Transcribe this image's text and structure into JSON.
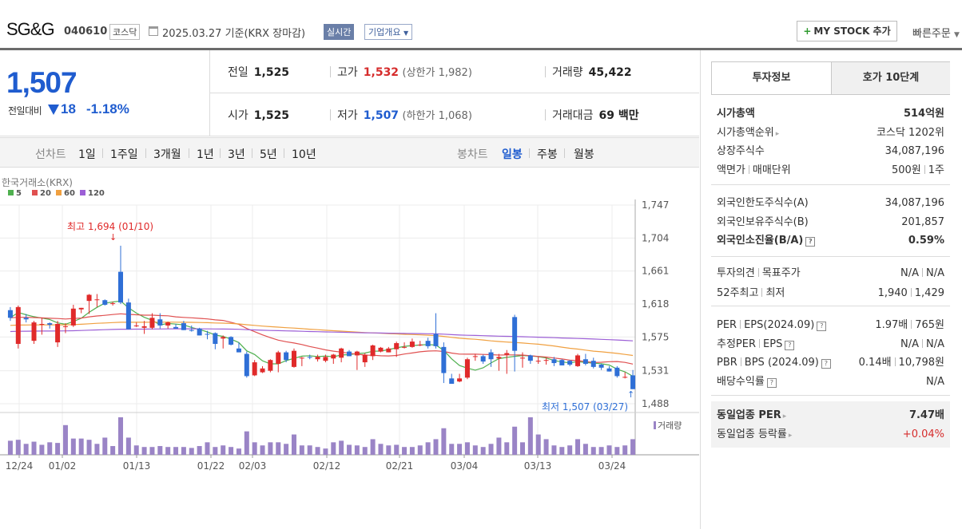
{
  "header": {
    "name": "SG&G",
    "code": "040610",
    "market": "코스닥",
    "date": "2025.03.27 기준(KRX 장마감)",
    "realtime": "실시간",
    "company_info": "기업개요",
    "mystock": "MY STOCK 추가",
    "quick_order": "빠른주문"
  },
  "quote": {
    "price": "1,507",
    "vs_label": "전일대비",
    "change": "18",
    "change_pct": "-1.18%",
    "prev_label": "전일",
    "prev": "1,525",
    "open_label": "시가",
    "open": "1,525",
    "high_label": "고가",
    "high": "1,532",
    "upper_limit": "(상한가 1,982)",
    "low_label": "저가",
    "low": "1,507",
    "lower_limit": "(하한가 1,068)",
    "volume_label": "거래량",
    "volume": "45,422",
    "amount_label": "거래대금",
    "amount": "69 백만"
  },
  "toolbar": {
    "line_chart": "선차트",
    "periods": [
      "1일",
      "1주일",
      "3개월",
      "1년",
      "3년",
      "5년",
      "10년"
    ],
    "candle_chart": "봉차트",
    "candle_periods": [
      "일봉",
      "주봉",
      "월봉"
    ],
    "selected_candle": "일봉"
  },
  "chart_data": {
    "type": "candlestick",
    "source": "한국거래소(KRX)",
    "legend": [
      {
        "name": "5",
        "color": "#4fb04f"
      },
      {
        "name": "20",
        "color": "#e05050"
      },
      {
        "name": "60",
        "color": "#f0a040"
      },
      {
        "name": "120",
        "color": "#9c5fd6"
      }
    ],
    "y_ticks": [
      "1,747",
      "1,704",
      "1,661",
      "1,618",
      "1,575",
      "1,531",
      "1,488"
    ],
    "ylim": [
      1488,
      1747
    ],
    "x_ticks": [
      "12/24",
      "01/02",
      "01/13",
      "01/22",
      "02/03",
      "02/12",
      "02/21",
      "03/04",
      "03/13",
      "03/24"
    ],
    "high_note": "최고 1,694 (01/10)",
    "low_note": "최저 1,507 (03/27)",
    "volume_label": "거래량",
    "candles": [
      {
        "o": 1610,
        "c": 1600,
        "h": 1614,
        "l": 1596
      },
      {
        "o": 1566,
        "c": 1614,
        "h": 1616,
        "l": 1560
      },
      {
        "o": 1600,
        "c": 1598,
        "h": 1605,
        "l": 1594
      },
      {
        "o": 1570,
        "c": 1594,
        "h": 1596,
        "l": 1566
      },
      {
        "o": 1592,
        "c": 1592,
        "h": 1600,
        "l": 1578
      },
      {
        "o": 1593,
        "c": 1591,
        "h": 1594,
        "l": 1586
      },
      {
        "o": 1568,
        "c": 1592,
        "h": 1596,
        "l": 1562
      },
      {
        "o": 1589,
        "c": 1589,
        "h": 1593,
        "l": 1580
      },
      {
        "o": 1590,
        "c": 1612,
        "h": 1617,
        "l": 1588
      },
      {
        "o": 1611,
        "c": 1613,
        "h": 1613,
        "l": 1606
      },
      {
        "o": 1622,
        "c": 1630,
        "h": 1631,
        "l": 1605
      },
      {
        "o": 1624,
        "c": 1624,
        "h": 1631,
        "l": 1614
      },
      {
        "o": 1623,
        "c": 1617,
        "h": 1624,
        "l": 1616
      },
      {
        "o": 1619,
        "c": 1619,
        "h": 1621,
        "l": 1616
      },
      {
        "o": 1660,
        "c": 1620,
        "h": 1694,
        "l": 1618
      },
      {
        "o": 1620,
        "c": 1585,
        "h": 1625,
        "l": 1585
      },
      {
        "o": 1590,
        "c": 1590,
        "h": 1594,
        "l": 1588
      },
      {
        "o": 1587,
        "c": 1589,
        "h": 1596,
        "l": 1579
      },
      {
        "o": 1587,
        "c": 1600,
        "h": 1606,
        "l": 1585
      },
      {
        "o": 1598,
        "c": 1590,
        "h": 1606,
        "l": 1586
      },
      {
        "o": 1590,
        "c": 1594,
        "h": 1595,
        "l": 1586
      },
      {
        "o": 1588,
        "c": 1586,
        "h": 1592,
        "l": 1586
      },
      {
        "o": 1593,
        "c": 1584,
        "h": 1596,
        "l": 1584
      },
      {
        "o": 1584,
        "c": 1583,
        "h": 1590,
        "l": 1582
      },
      {
        "o": 1586,
        "c": 1577,
        "h": 1587,
        "l": 1577
      },
      {
        "o": 1579,
        "c": 1578,
        "h": 1583,
        "l": 1572
      },
      {
        "o": 1580,
        "c": 1566,
        "h": 1581,
        "l": 1559
      },
      {
        "o": 1573,
        "c": 1575,
        "h": 1577,
        "l": 1560
      },
      {
        "o": 1575,
        "c": 1565,
        "h": 1576,
        "l": 1564
      },
      {
        "o": 1560,
        "c": 1555,
        "h": 1568,
        "l": 1555
      },
      {
        "o": 1553,
        "c": 1524,
        "h": 1556,
        "l": 1522
      },
      {
        "o": 1525,
        "c": 1542,
        "h": 1545,
        "l": 1524
      },
      {
        "o": 1529,
        "c": 1534,
        "h": 1537,
        "l": 1528
      },
      {
        "o": 1531,
        "c": 1545,
        "h": 1546,
        "l": 1529
      },
      {
        "o": 1540,
        "c": 1555,
        "h": 1557,
        "l": 1529
      },
      {
        "o": 1555,
        "c": 1545,
        "h": 1557,
        "l": 1542
      },
      {
        "o": 1536,
        "c": 1557,
        "h": 1560,
        "l": 1535
      },
      {
        "o": 1548,
        "c": 1548,
        "h": 1549,
        "l": 1537
      },
      {
        "o": 1549,
        "c": 1548,
        "h": 1552,
        "l": 1546
      },
      {
        "o": 1546,
        "c": 1549,
        "h": 1552,
        "l": 1543
      },
      {
        "o": 1544,
        "c": 1549,
        "h": 1552,
        "l": 1542
      },
      {
        "o": 1547,
        "c": 1552,
        "h": 1553,
        "l": 1540
      },
      {
        "o": 1548,
        "c": 1560,
        "h": 1561,
        "l": 1542
      },
      {
        "o": 1556,
        "c": 1550,
        "h": 1558,
        "l": 1550
      },
      {
        "o": 1551,
        "c": 1556,
        "h": 1557,
        "l": 1532
      },
      {
        "o": 1542,
        "c": 1552,
        "h": 1554,
        "l": 1536
      },
      {
        "o": 1550,
        "c": 1564,
        "h": 1565,
        "l": 1545
      },
      {
        "o": 1556,
        "c": 1561,
        "h": 1562,
        "l": 1555
      },
      {
        "o": 1555,
        "c": 1560,
        "h": 1562,
        "l": 1555
      },
      {
        "o": 1559,
        "c": 1567,
        "h": 1569,
        "l": 1549
      },
      {
        "o": 1562,
        "c": 1562,
        "h": 1568,
        "l": 1560
      },
      {
        "o": 1562,
        "c": 1569,
        "h": 1573,
        "l": 1561
      },
      {
        "o": 1564,
        "c": 1565,
        "h": 1570,
        "l": 1563
      },
      {
        "o": 1570,
        "c": 1563,
        "h": 1574,
        "l": 1560
      },
      {
        "o": 1579,
        "c": 1563,
        "h": 1606,
        "l": 1560
      },
      {
        "o": 1562,
        "c": 1528,
        "h": 1568,
        "l": 1515
      },
      {
        "o": 1521,
        "c": 1514,
        "h": 1527,
        "l": 1514
      },
      {
        "o": 1517,
        "c": 1521,
        "h": 1527,
        "l": 1516
      },
      {
        "o": 1522,
        "c": 1546,
        "h": 1548,
        "l": 1520
      },
      {
        "o": 1550,
        "c": 1550,
        "h": 1553,
        "l": 1544
      },
      {
        "o": 1550,
        "c": 1543,
        "h": 1552,
        "l": 1540
      },
      {
        "o": 1555,
        "c": 1546,
        "h": 1559,
        "l": 1536
      },
      {
        "o": 1547,
        "c": 1549,
        "h": 1553,
        "l": 1531
      },
      {
        "o": 1552,
        "c": 1554,
        "h": 1558,
        "l": 1527
      },
      {
        "o": 1601,
        "c": 1557,
        "h": 1604,
        "l": 1530
      },
      {
        "o": 1548,
        "c": 1548,
        "h": 1555,
        "l": 1535
      },
      {
        "o": 1551,
        "c": 1544,
        "h": 1552,
        "l": 1540
      },
      {
        "o": 1543,
        "c": 1544,
        "h": 1549,
        "l": 1540
      },
      {
        "o": 1545,
        "c": 1545,
        "h": 1548,
        "l": 1539
      },
      {
        "o": 1546,
        "c": 1541,
        "h": 1549,
        "l": 1537
      },
      {
        "o": 1545,
        "c": 1538,
        "h": 1546,
        "l": 1538
      },
      {
        "o": 1544,
        "c": 1539,
        "h": 1545,
        "l": 1537
      },
      {
        "o": 1537,
        "c": 1551,
        "h": 1553,
        "l": 1536
      },
      {
        "o": 1546,
        "c": 1540,
        "h": 1553,
        "l": 1538
      },
      {
        "o": 1544,
        "c": 1536,
        "h": 1548,
        "l": 1534
      },
      {
        "o": 1539,
        "c": 1535,
        "h": 1540,
        "l": 1532
      },
      {
        "o": 1534,
        "c": 1530,
        "h": 1537,
        "l": 1530
      },
      {
        "o": 1535,
        "c": 1524,
        "h": 1537,
        "l": 1522
      },
      {
        "o": 1523,
        "c": 1523,
        "h": 1529,
        "l": 1521
      },
      {
        "o": 1525,
        "c": 1507,
        "h": 1532,
        "l": 1507
      }
    ],
    "volumes": [
      0.45,
      0.48,
      0.35,
      0.42,
      0.32,
      0.4,
      0.38,
      0.95,
      0.52,
      0.52,
      0.48,
      0.35,
      0.55,
      0.28,
      1.2,
      0.55,
      0.3,
      0.25,
      0.25,
      0.28,
      0.25,
      0.25,
      0.25,
      0.22,
      0.28,
      0.4,
      0.25,
      0.3,
      0.25,
      0.2,
      0.75,
      0.4,
      0.3,
      0.4,
      0.4,
      0.35,
      0.65,
      0.3,
      0.3,
      0.25,
      0.2,
      0.4,
      0.45,
      0.32,
      0.3,
      0.25,
      0.5,
      0.35,
      0.3,
      0.32,
      0.25,
      0.25,
      0.3,
      0.4,
      0.5,
      0.85,
      0.35,
      0.35,
      0.4,
      0.3,
      0.25,
      0.35,
      0.55,
      0.4,
      0.9,
      0.4,
      1.2,
      0.65,
      0.5,
      0.3,
      0.25,
      0.3,
      0.5,
      0.35,
      0.25,
      0.25,
      0.3,
      0.25,
      0.3,
      0.5
    ]
  },
  "right": {
    "tab1": "투자정보",
    "tab2": "호가 10단계",
    "rows1": [
      {
        "l": "시가총액",
        "r": "514억원",
        "bold": true
      },
      {
        "l": "시가총액순위",
        "r": "코스닥 1202위",
        "arrow": true
      },
      {
        "l": "상장주식수",
        "r": "34,087,196"
      },
      {
        "l": "액면가",
        "l2": "매매단위",
        "r": "500원",
        "r2": "1주"
      }
    ],
    "rows2": [
      {
        "l": "외국인한도주식수(A)",
        "r": "34,087,196"
      },
      {
        "l": "외국인보유주식수(B)",
        "r": "201,857"
      },
      {
        "l": "외국인소진율(B/A)",
        "r": "0.59%",
        "bold": true,
        "help": true
      }
    ],
    "rows3": [
      {
        "l": "투자의견",
        "l2": "목표주가",
        "r": "N/A",
        "r2": "N/A"
      },
      {
        "l": "52주최고",
        "l2": "최저",
        "r": "1,940",
        "r2": "1,429"
      }
    ],
    "rows4": [
      {
        "l": "PER",
        "l2": "EPS(2024.09)",
        "r": "1.97배",
        "r2": "765원",
        "help": true
      },
      {
        "l": "추정PER",
        "l2": "EPS",
        "r": "N/A",
        "r2": "N/A",
        "help": true
      },
      {
        "l": "PBR",
        "l2": "BPS (2024.09)",
        "r": "0.14배",
        "r2": "10,798원",
        "help": true
      },
      {
        "l": "배당수익률",
        "r": "N/A",
        "help": true
      }
    ],
    "rows5": [
      {
        "l": "동일업종 PER",
        "r": "7.47배",
        "bold": true,
        "arrow": true
      },
      {
        "l": "동일업종 등락률",
        "r": "+0.04%",
        "red": true,
        "arrow": true
      }
    ]
  }
}
